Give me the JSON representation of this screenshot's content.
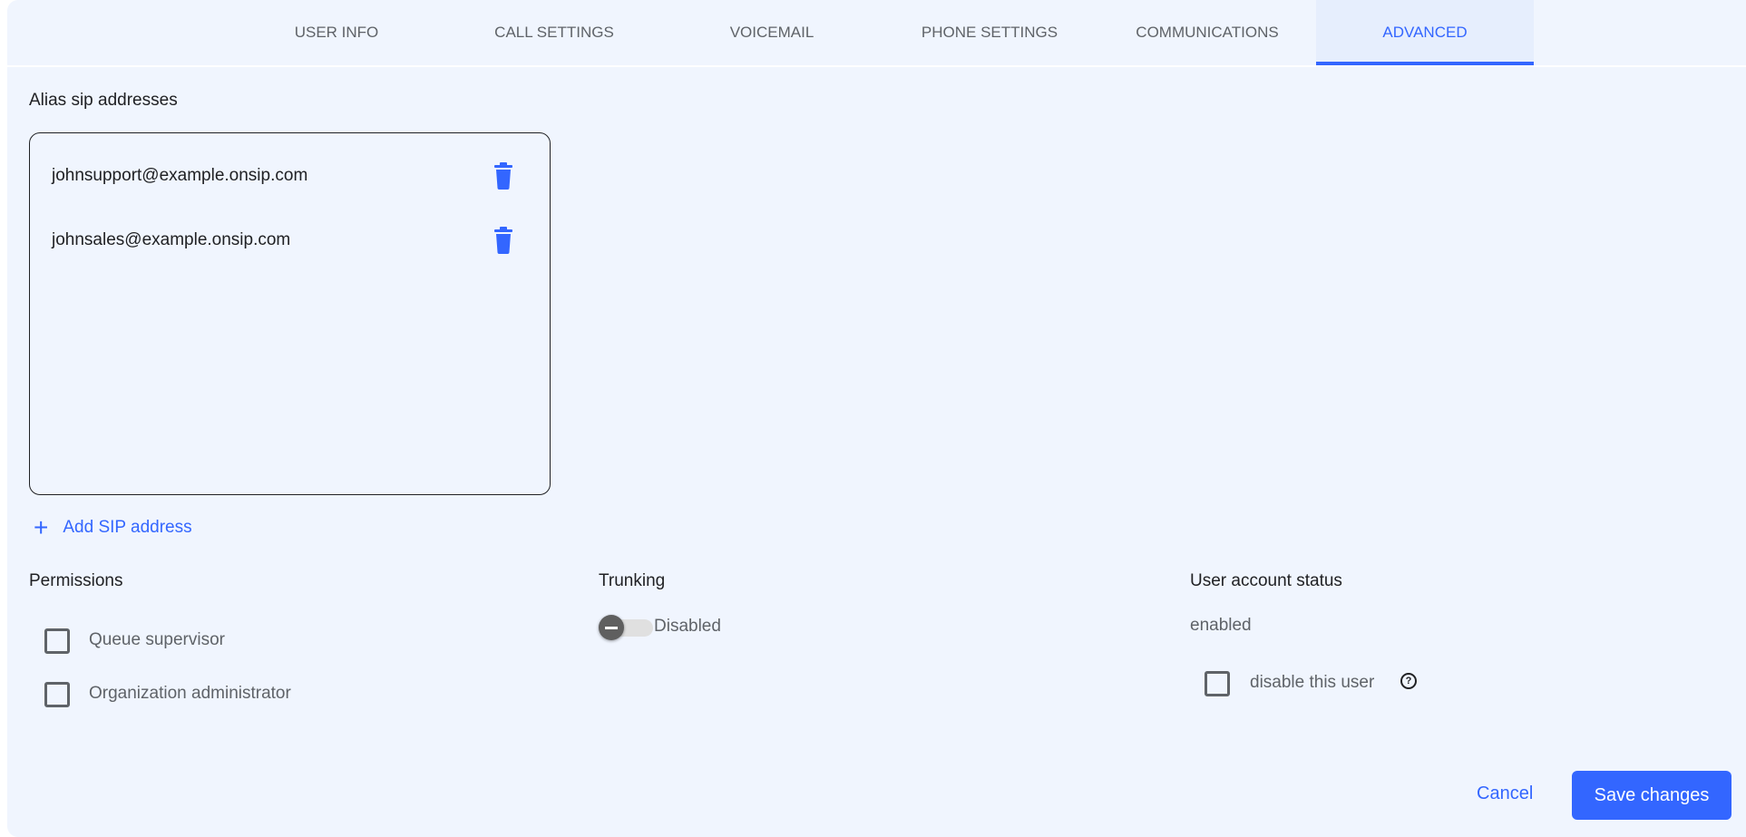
{
  "tabs": [
    {
      "label": "USER INFO",
      "active": false
    },
    {
      "label": "CALL SETTINGS",
      "active": false
    },
    {
      "label": "VOICEMAIL",
      "active": false
    },
    {
      "label": "PHONE SETTINGS",
      "active": false
    },
    {
      "label": "COMMUNICATIONS",
      "active": false
    },
    {
      "label": "ADVANCED",
      "active": true
    }
  ],
  "alias": {
    "title": "Alias sip addresses",
    "items": [
      "johnsupport@example.onsip.com",
      "johnsales@example.onsip.com"
    ],
    "delete_icon": "trash-icon",
    "add_label": "Add SIP address",
    "add_icon": "plus-icon"
  },
  "permissions": {
    "title": "Permissions",
    "options": [
      {
        "label": "Queue supervisor",
        "checked": false
      },
      {
        "label": "Organization administrator",
        "checked": false
      }
    ]
  },
  "trunking": {
    "title": "Trunking",
    "state_label": "Disabled",
    "enabled": false
  },
  "account_status": {
    "title": "User account status",
    "value": "enabled",
    "disable_label": "disable this user",
    "disable_checked": false,
    "help_icon": "help-circle-icon"
  },
  "actions": {
    "cancel": "Cancel",
    "save": "Save changes"
  },
  "colors": {
    "accent": "#3366ff",
    "background": "#f0f5fe"
  }
}
